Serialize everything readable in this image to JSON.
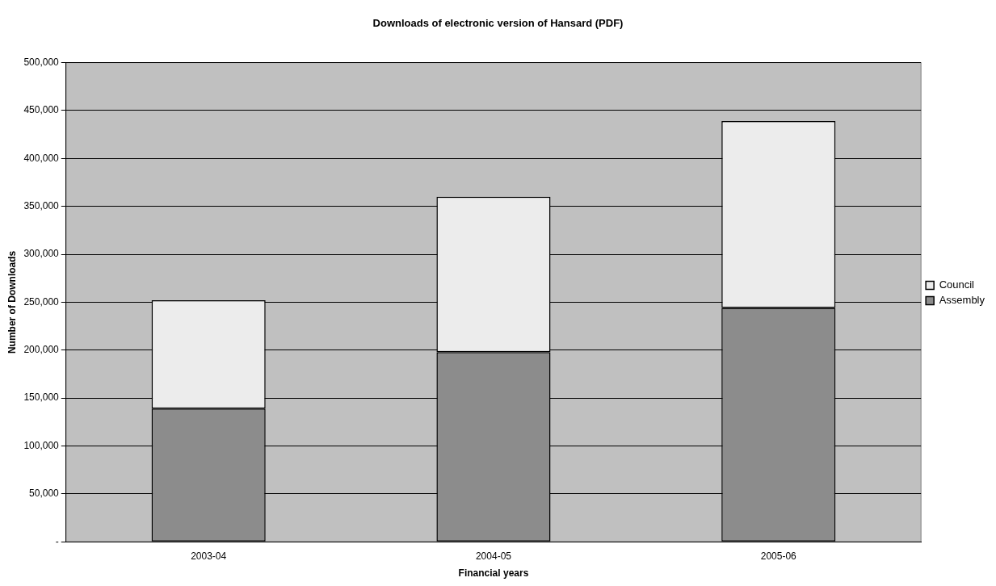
{
  "chart_data": {
    "type": "bar",
    "title": "Downloads of electronic version of Hansard (PDF)",
    "xlabel": "Financial years",
    "ylabel": "Number of Downloads",
    "categories": [
      "2003-04",
      "2004-05",
      "2005-06"
    ],
    "series": [
      {
        "name": "Assembly",
        "color": "#8c8c8c",
        "values": [
          139000,
          198000,
          244000
        ]
      },
      {
        "name": "Council",
        "color": "#ececec",
        "values": [
          113000,
          162000,
          195000
        ]
      }
    ],
    "stacked": true,
    "ylim": [
      0,
      500000
    ],
    "yticks": [
      {
        "value": 0,
        "label": "-"
      },
      {
        "value": 50000,
        "label": "50,000"
      },
      {
        "value": 100000,
        "label": "100,000"
      },
      {
        "value": 150000,
        "label": "150,000"
      },
      {
        "value": 200000,
        "label": "200,000"
      },
      {
        "value": 250000,
        "label": "250,000"
      },
      {
        "value": 300000,
        "label": "300,000"
      },
      {
        "value": 350000,
        "label": "350,000"
      },
      {
        "value": 400000,
        "label": "400,000"
      },
      {
        "value": 450000,
        "label": "450,000"
      },
      {
        "value": 500000,
        "label": "500,000"
      }
    ],
    "grid": "y",
    "legend": "right"
  }
}
